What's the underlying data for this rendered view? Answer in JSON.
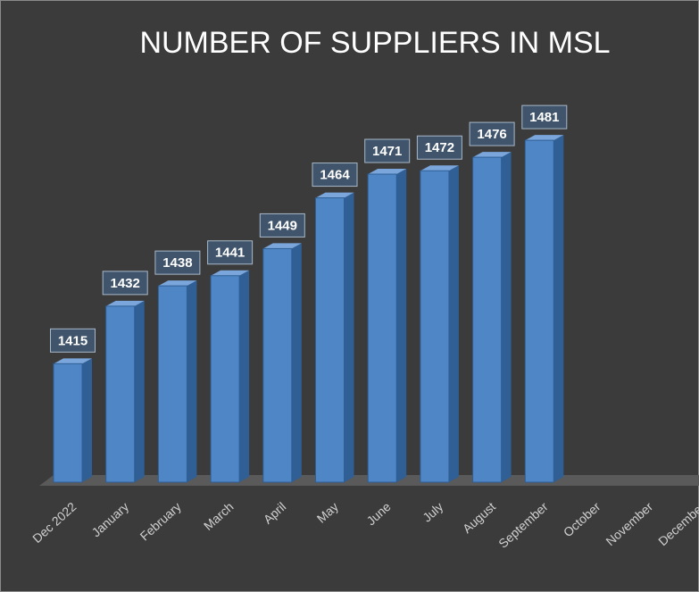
{
  "chart_data": {
    "type": "bar",
    "title": "NUMBER OF SUPPLIERS IN MSL",
    "categories": [
      "Dec 2022",
      "January",
      "February",
      "March",
      "April",
      "May",
      "June",
      "July",
      "August",
      "September",
      "October",
      "November",
      "December"
    ],
    "values": [
      1415,
      1432,
      1438,
      1441,
      1449,
      1464,
      1471,
      1472,
      1476,
      1481,
      null,
      null,
      null
    ],
    "color": "#4f86c6",
    "ylim": [
      1380,
      1490
    ]
  }
}
